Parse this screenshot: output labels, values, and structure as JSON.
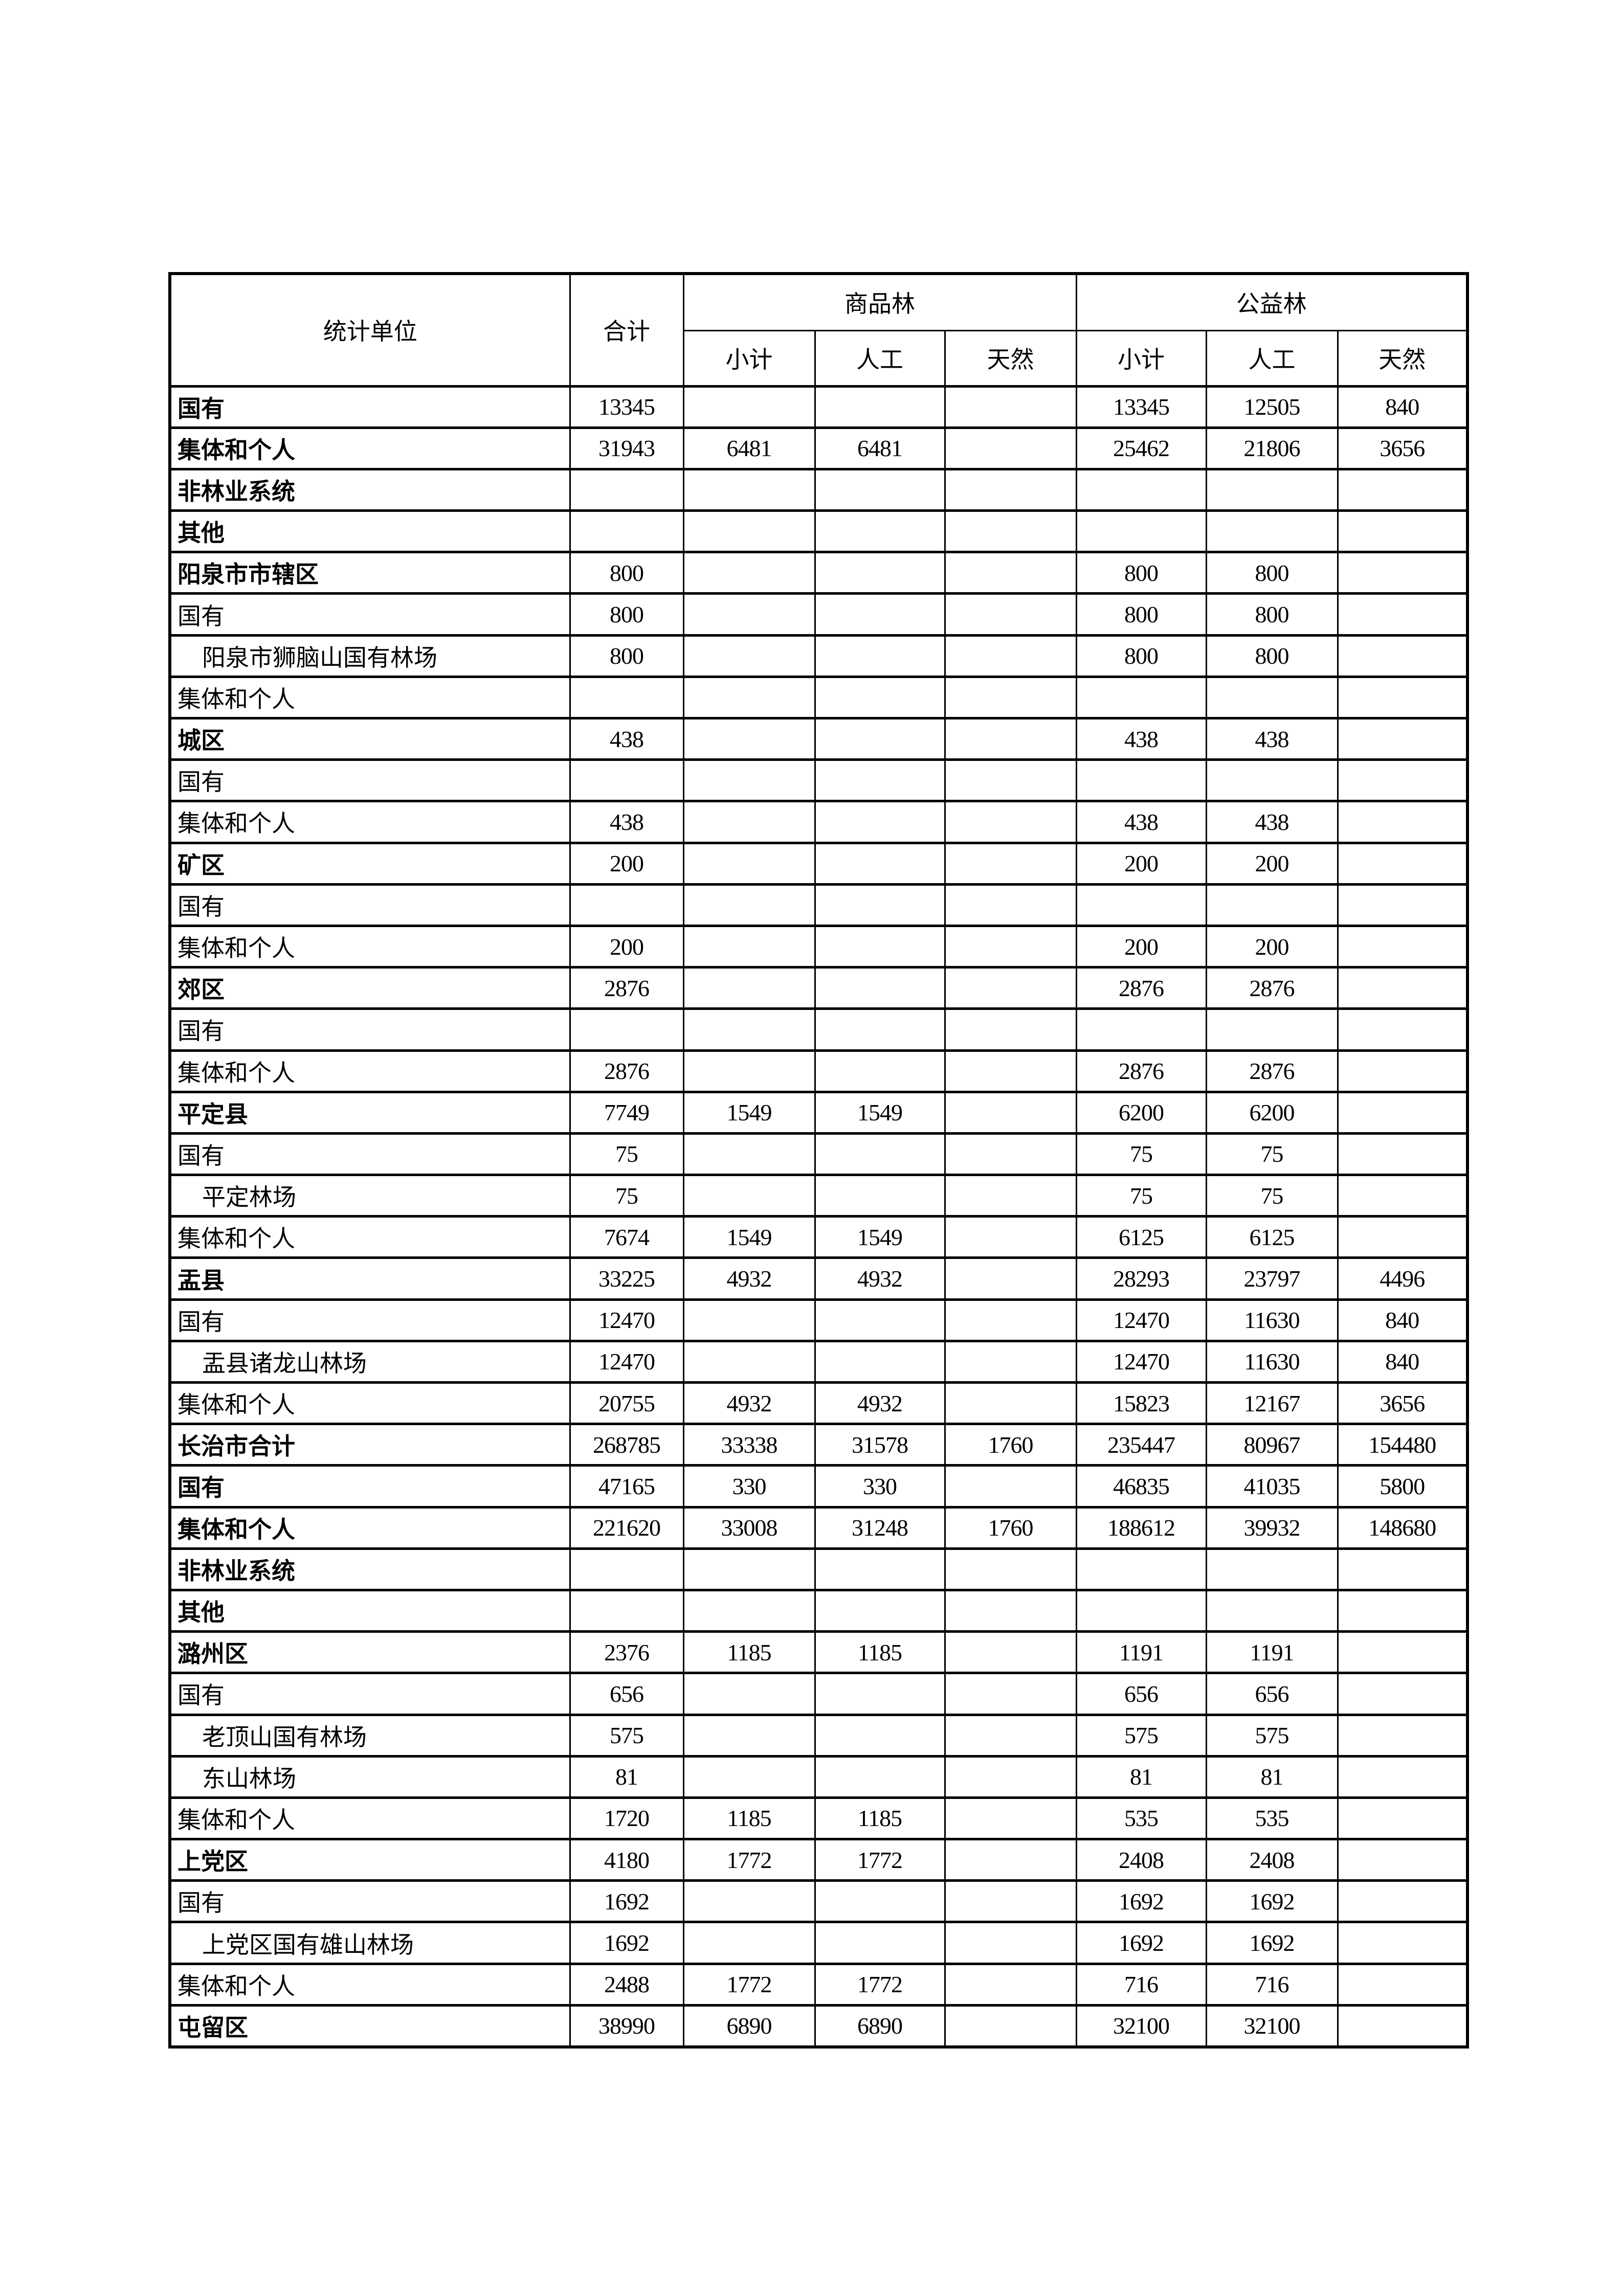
{
  "header": {
    "unit": "统计单位",
    "total": "合计",
    "commercial": "商品林",
    "public": "公益林",
    "subtotal": "小计",
    "planted": "人工",
    "natural": "天然"
  },
  "rows": [
    {
      "label": "国有",
      "style": "b",
      "values": [
        "13345",
        "",
        "",
        "",
        "13345",
        "12505",
        "840"
      ]
    },
    {
      "label": "集体和个人",
      "style": "b",
      "values": [
        "31943",
        "6481",
        "6481",
        "",
        "25462",
        "21806",
        "3656"
      ]
    },
    {
      "label": "非林业系统",
      "style": "b",
      "values": [
        "",
        "",
        "",
        "",
        "",
        "",
        ""
      ]
    },
    {
      "label": "其他",
      "style": "b",
      "values": [
        "",
        "",
        "",
        "",
        "",
        "",
        ""
      ]
    },
    {
      "label": "阳泉市市辖区",
      "style": "b",
      "values": [
        "800",
        "",
        "",
        "",
        "800",
        "800",
        ""
      ]
    },
    {
      "label": "国有",
      "style": "n",
      "values": [
        "800",
        "",
        "",
        "",
        "800",
        "800",
        ""
      ]
    },
    {
      "label": "阳泉市狮脑山国有林场",
      "style": "i",
      "values": [
        "800",
        "",
        "",
        "",
        "800",
        "800",
        ""
      ]
    },
    {
      "label": "集体和个人",
      "style": "n",
      "values": [
        "",
        "",
        "",
        "",
        "",
        "",
        ""
      ]
    },
    {
      "label": "城区",
      "style": "b",
      "values": [
        "438",
        "",
        "",
        "",
        "438",
        "438",
        ""
      ]
    },
    {
      "label": "国有",
      "style": "n",
      "values": [
        "",
        "",
        "",
        "",
        "",
        "",
        ""
      ]
    },
    {
      "label": "集体和个人",
      "style": "n",
      "values": [
        "438",
        "",
        "",
        "",
        "438",
        "438",
        ""
      ]
    },
    {
      "label": "矿区",
      "style": "b",
      "values": [
        "200",
        "",
        "",
        "",
        "200",
        "200",
        ""
      ]
    },
    {
      "label": "国有",
      "style": "n",
      "values": [
        "",
        "",
        "",
        "",
        "",
        "",
        ""
      ]
    },
    {
      "label": "集体和个人",
      "style": "n",
      "values": [
        "200",
        "",
        "",
        "",
        "200",
        "200",
        ""
      ]
    },
    {
      "label": "郊区",
      "style": "b",
      "values": [
        "2876",
        "",
        "",
        "",
        "2876",
        "2876",
        ""
      ]
    },
    {
      "label": "国有",
      "style": "n",
      "values": [
        "",
        "",
        "",
        "",
        "",
        "",
        ""
      ]
    },
    {
      "label": "集体和个人",
      "style": "n",
      "values": [
        "2876",
        "",
        "",
        "",
        "2876",
        "2876",
        ""
      ]
    },
    {
      "label": "平定县",
      "style": "b",
      "values": [
        "7749",
        "1549",
        "1549",
        "",
        "6200",
        "6200",
        ""
      ]
    },
    {
      "label": "国有",
      "style": "n",
      "values": [
        "75",
        "",
        "",
        "",
        "75",
        "75",
        ""
      ]
    },
    {
      "label": "平定林场",
      "style": "i",
      "values": [
        "75",
        "",
        "",
        "",
        "75",
        "75",
        ""
      ]
    },
    {
      "label": "集体和个人",
      "style": "n",
      "values": [
        "7674",
        "1549",
        "1549",
        "",
        "6125",
        "6125",
        ""
      ]
    },
    {
      "label": "盂县",
      "style": "b",
      "values": [
        "33225",
        "4932",
        "4932",
        "",
        "28293",
        "23797",
        "4496"
      ]
    },
    {
      "label": "国有",
      "style": "n",
      "values": [
        "12470",
        "",
        "",
        "",
        "12470",
        "11630",
        "840"
      ]
    },
    {
      "label": "盂县诸龙山林场",
      "style": "i",
      "values": [
        "12470",
        "",
        "",
        "",
        "12470",
        "11630",
        "840"
      ]
    },
    {
      "label": "集体和个人",
      "style": "n",
      "values": [
        "20755",
        "4932",
        "4932",
        "",
        "15823",
        "12167",
        "3656"
      ]
    },
    {
      "label": "长治市合计",
      "style": "b",
      "values": [
        "268785",
        "33338",
        "31578",
        "1760",
        "235447",
        "80967",
        "154480"
      ]
    },
    {
      "label": "国有",
      "style": "b",
      "values": [
        "47165",
        "330",
        "330",
        "",
        "46835",
        "41035",
        "5800"
      ]
    },
    {
      "label": "集体和个人",
      "style": "b",
      "values": [
        "221620",
        "33008",
        "31248",
        "1760",
        "188612",
        "39932",
        "148680"
      ]
    },
    {
      "label": "非林业系统",
      "style": "b",
      "values": [
        "",
        "",
        "",
        "",
        "",
        "",
        ""
      ]
    },
    {
      "label": "其他",
      "style": "b",
      "values": [
        "",
        "",
        "",
        "",
        "",
        "",
        ""
      ]
    },
    {
      "label": "潞州区",
      "style": "b",
      "values": [
        "2376",
        "1185",
        "1185",
        "",
        "1191",
        "1191",
        ""
      ]
    },
    {
      "label": "国有",
      "style": "n",
      "values": [
        "656",
        "",
        "",
        "",
        "656",
        "656",
        ""
      ]
    },
    {
      "label": "老顶山国有林场",
      "style": "i",
      "values": [
        "575",
        "",
        "",
        "",
        "575",
        "575",
        ""
      ]
    },
    {
      "label": "东山林场",
      "style": "i",
      "values": [
        "81",
        "",
        "",
        "",
        "81",
        "81",
        ""
      ]
    },
    {
      "label": "集体和个人",
      "style": "n",
      "values": [
        "1720",
        "1185",
        "1185",
        "",
        "535",
        "535",
        ""
      ]
    },
    {
      "label": "上党区",
      "style": "b",
      "values": [
        "4180",
        "1772",
        "1772",
        "",
        "2408",
        "2408",
        ""
      ]
    },
    {
      "label": "国有",
      "style": "n",
      "values": [
        "1692",
        "",
        "",
        "",
        "1692",
        "1692",
        ""
      ]
    },
    {
      "label": "上党区国有雄山林场",
      "style": "i",
      "values": [
        "1692",
        "",
        "",
        "",
        "1692",
        "1692",
        ""
      ]
    },
    {
      "label": "集体和个人",
      "style": "n",
      "values": [
        "2488",
        "1772",
        "1772",
        "",
        "716",
        "716",
        ""
      ]
    },
    {
      "label": "屯留区",
      "style": "b",
      "values": [
        "38990",
        "6890",
        "6890",
        "",
        "32100",
        "32100",
        ""
      ]
    }
  ]
}
